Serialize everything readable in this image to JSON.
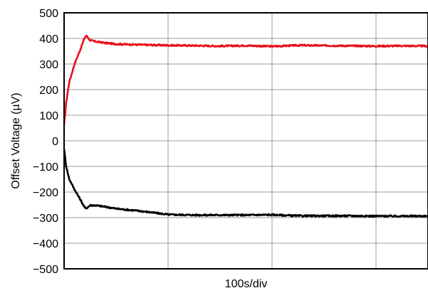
{
  "chart_data": {
    "type": "line",
    "xlabel": "100s/div",
    "ylabel": "Offset Voltage (µV)",
    "ylim": [
      -500,
      500
    ],
    "y_ticks": [
      "500",
      "400",
      "300",
      "200",
      "100",
      "0",
      "-100",
      "-200",
      "-300",
      "-400",
      "-500"
    ],
    "x_divisions": 3.5,
    "grid": true,
    "series": [
      {
        "color": "#e8101a",
        "x": [
          0,
          0.02,
          0.05,
          0.1,
          0.15,
          0.2,
          0.22,
          0.25,
          0.3,
          0.4,
          0.5,
          0.75,
          1.0,
          1.25,
          1.5,
          1.75,
          2.0,
          2.25,
          2.5,
          2.75,
          3.0,
          3.25,
          3.5
        ],
        "values": [
          60,
          150,
          230,
          300,
          350,
          405,
          410,
          392,
          388,
          382,
          378,
          375,
          373,
          372,
          370,
          372,
          369,
          373,
          372,
          371,
          370,
          371,
          370
        ]
      },
      {
        "color": "#000000",
        "x": [
          0,
          0.02,
          0.05,
          0.1,
          0.15,
          0.2,
          0.22,
          0.25,
          0.3,
          0.4,
          0.5,
          0.75,
          1.0,
          1.25,
          1.5,
          1.75,
          2.0,
          2.25,
          2.5,
          2.75,
          3.0,
          3.25,
          3.5
        ],
        "values": [
          -30,
          -100,
          -150,
          -190,
          -225,
          -262,
          -262,
          -252,
          -252,
          -258,
          -265,
          -275,
          -288,
          -290,
          -290,
          -290,
          -289,
          -293,
          -293,
          -293,
          -294,
          -294,
          -294
        ]
      }
    ]
  }
}
